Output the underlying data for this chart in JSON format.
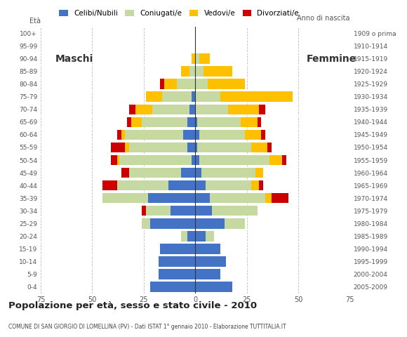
{
  "title": "Popolazione per età, sesso e stato civile - 2010",
  "subtitle": "COMUNE DI SAN GIORGIO DI LOMELLINA (PV) - Dati ISTAT 1° gennaio 2010 - Elaborazione TUTTITALIA.IT",
  "age_groups_bottom_to_top": [
    "0-4",
    "5-9",
    "10-14",
    "15-19",
    "20-24",
    "25-29",
    "30-34",
    "35-39",
    "40-44",
    "45-49",
    "50-54",
    "55-59",
    "60-64",
    "65-69",
    "70-74",
    "75-79",
    "80-84",
    "85-89",
    "90-94",
    "95-99",
    "100+"
  ],
  "birth_years_bottom_to_top": [
    "2005-2009",
    "2000-2004",
    "1995-1999",
    "1990-1994",
    "1985-1989",
    "1980-1984",
    "1975-1979",
    "1970-1974",
    "1965-1969",
    "1960-1964",
    "1955-1959",
    "1950-1954",
    "1945-1949",
    "1940-1944",
    "1935-1939",
    "1930-1934",
    "1925-1929",
    "1920-1924",
    "1915-1919",
    "1910-1914",
    "1909 o prima"
  ],
  "colors": {
    "celibe": "#4472c4",
    "coniugato": "#c5d9a0",
    "vedovo": "#ffc000",
    "divorziato": "#cc0000"
  },
  "males_bottom_to_top": {
    "celibe": [
      22,
      18,
      18,
      17,
      4,
      22,
      12,
      23,
      13,
      7,
      2,
      4,
      6,
      4,
      3,
      2,
      0,
      0,
      0,
      0,
      0
    ],
    "coniugato": [
      0,
      0,
      0,
      0,
      3,
      4,
      12,
      22,
      25,
      25,
      35,
      28,
      28,
      22,
      18,
      14,
      9,
      3,
      0,
      0,
      0
    ],
    "vedovo": [
      0,
      0,
      0,
      0,
      0,
      0,
      0,
      0,
      0,
      0,
      1,
      2,
      2,
      5,
      8,
      8,
      6,
      4,
      2,
      0,
      0
    ],
    "divorziato": [
      0,
      0,
      0,
      0,
      0,
      0,
      2,
      0,
      7,
      4,
      3,
      7,
      2,
      2,
      3,
      0,
      2,
      0,
      0,
      0,
      0
    ]
  },
  "females_bottom_to_top": {
    "celibe": [
      18,
      12,
      15,
      12,
      5,
      14,
      8,
      7,
      5,
      3,
      2,
      1,
      2,
      1,
      0,
      0,
      0,
      0,
      0,
      0,
      0
    ],
    "coniugato": [
      0,
      0,
      0,
      0,
      4,
      10,
      22,
      27,
      22,
      26,
      34,
      26,
      22,
      21,
      16,
      12,
      6,
      4,
      2,
      0,
      0
    ],
    "vedovo": [
      0,
      0,
      0,
      0,
      0,
      0,
      0,
      3,
      4,
      4,
      6,
      8,
      8,
      8,
      15,
      35,
      18,
      14,
      5,
      0,
      0
    ],
    "divorziato": [
      0,
      0,
      0,
      0,
      0,
      0,
      0,
      8,
      2,
      0,
      2,
      2,
      2,
      2,
      3,
      0,
      0,
      0,
      0,
      0,
      0
    ]
  },
  "xlim": 75,
  "background_color": "#ffffff",
  "grid_color": "#bbbbbb",
  "ylabel_left": "À",
  "ylabel_right": "Anno di nascita",
  "xlabel_left": "Maschi",
  "xlabel_right": "Femmine"
}
